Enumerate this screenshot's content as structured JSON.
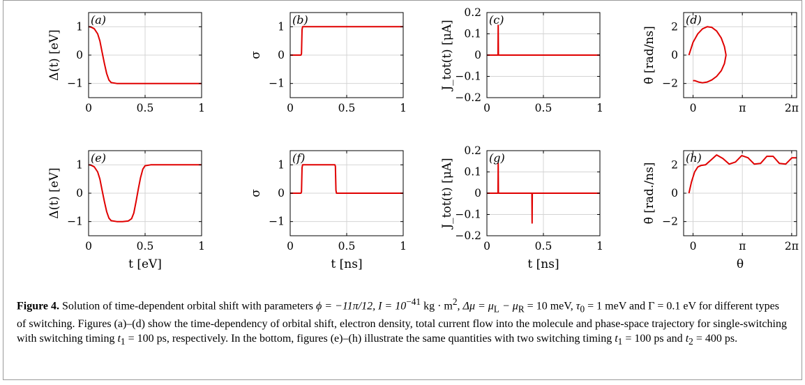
{
  "figure": {
    "label": "Figure 4.",
    "caption_parts": {
      "p1": "Solution of time-dependent orbital shift with parameters ",
      "phi": "ϕ = −11π/12, I = 10",
      "phi_exp": "−41",
      "I_units": " kg · m",
      "I_sq": "2",
      "sep1": ", ",
      "dmu": "Δμ = μ",
      "L": "L",
      "minus": " − μ",
      "R": "R",
      "dmu_val": " = 10 meV,",
      "tau": "τ",
      "tau_sub": "0",
      "tau_val": " = 1 meV and Γ = 0.1 eV",
      "p2": " for different types of switching. Figures (a)–(d) show the time-dependency of orbital shift, electron density, total current flow into the molecule and phase-space trajectory for single-switching with switching timing ",
      "t1": "t",
      "t1_sub": "1",
      "t1_val": " = 100 ps",
      "p3": ", respectively. In the bottom, figures (e)–(h) illustrate the same quantities with two switching timing ",
      "t1b": "t",
      "t1b_sub": "1",
      "t1b_val": " = 100 ps",
      "and": " and ",
      "t2": "t",
      "t2_sub": "2",
      "t2_val": " = 400 ps",
      "end": "."
    }
  },
  "colors": {
    "curve": "#e00000",
    "grid": "#d4d4d4",
    "axis": "#000000"
  },
  "chart_data": [
    {
      "panel": "(a)",
      "type": "line",
      "ylabel": "Δ(t)   [eV]",
      "xlabel": "",
      "xlim": [
        0,
        1
      ],
      "ylim": [
        -1.5,
        1.5
      ],
      "xticks": [
        "0",
        "0.5",
        "1"
      ],
      "yticks": [
        "1",
        "0",
        "−1"
      ],
      "grid": true,
      "series": [
        {
          "x": [
            0,
            0.02,
            0.05,
            0.08,
            0.1,
            0.12,
            0.14,
            0.16,
            0.18,
            0.2,
            0.25,
            0.3,
            0.5,
            0.75,
            1.0
          ],
          "y": [
            1.0,
            0.99,
            0.93,
            0.75,
            0.5,
            0.1,
            -0.3,
            -0.65,
            -0.88,
            -0.97,
            -1.0,
            -1.0,
            -1.0,
            -1.0,
            -1.0
          ]
        }
      ]
    },
    {
      "panel": "(b)",
      "type": "line",
      "ylabel": "σ",
      "xlabel": "",
      "xlim": [
        0,
        1
      ],
      "ylim": [
        -1.5,
        1.5
      ],
      "xticks": [
        "0",
        "0.5",
        "1"
      ],
      "yticks": [
        "1",
        "0",
        "−1"
      ],
      "grid": true,
      "series": [
        {
          "x": [
            0,
            0.095,
            0.1,
            0.105,
            0.11,
            0.2,
            0.5,
            1.0
          ],
          "y": [
            0,
            0.0,
            0.05,
            0.9,
            1.0,
            1.0,
            1.0,
            1.0
          ]
        }
      ]
    },
    {
      "panel": "(c)",
      "type": "line",
      "ylabel": "J_tot(t)   [μA]",
      "xlabel": "",
      "xlim": [
        0,
        1
      ],
      "ylim": [
        -0.2,
        0.2
      ],
      "xticks": [
        "0",
        "0.5",
        "1"
      ],
      "yticks": [
        "0.2",
        "0.1",
        "0",
        "−0.1",
        "−0.2"
      ],
      "grid": true,
      "series": [
        {
          "x": [
            0,
            0.098,
            0.1,
            0.1,
            0.102,
            1.0
          ],
          "y": [
            0,
            0,
            0.14,
            0.14,
            0,
            0
          ]
        }
      ]
    },
    {
      "panel": "(d)",
      "type": "line",
      "ylabel": "θ̇   [rad/ns]",
      "xlabel": "",
      "xlim": [
        -0.6,
        6.6
      ],
      "ylim": [
        -3,
        3
      ],
      "xticks": [
        "0",
        "π",
        "2π"
      ],
      "yticks": [
        "2",
        "0",
        "−2"
      ],
      "grid": true,
      "series": [
        {
          "x": [
            -0.26,
            0.0,
            0.3,
            0.6,
            0.9,
            1.2,
            1.5,
            1.8,
            2.0,
            2.1,
            2.0,
            1.8,
            1.5,
            1.2,
            0.9,
            0.6,
            0.35,
            0.1,
            0.0
          ],
          "y": [
            0.0,
            0.9,
            1.5,
            1.85,
            2.0,
            1.95,
            1.7,
            1.2,
            0.6,
            0.0,
            -0.6,
            -1.1,
            -1.5,
            -1.75,
            -1.9,
            -1.95,
            -1.9,
            -1.8,
            -1.8
          ]
        }
      ]
    },
    {
      "panel": "(e)",
      "type": "line",
      "ylabel": "Δ(t)   [eV]",
      "xlabel": "t   [eV]",
      "xlim": [
        0,
        1
      ],
      "ylim": [
        -1.5,
        1.5
      ],
      "xticks": [
        "0",
        "0.5",
        "1"
      ],
      "yticks": [
        "1",
        "0",
        "−1"
      ],
      "grid": true,
      "series": [
        {
          "x": [
            0,
            0.02,
            0.05,
            0.08,
            0.1,
            0.12,
            0.14,
            0.16,
            0.18,
            0.2,
            0.25,
            0.3,
            0.35,
            0.38,
            0.4,
            0.42,
            0.44,
            0.46,
            0.48,
            0.5,
            0.55,
            0.75,
            1.0
          ],
          "y": [
            1.0,
            0.99,
            0.93,
            0.75,
            0.5,
            0.1,
            -0.3,
            -0.65,
            -0.88,
            -0.97,
            -1.0,
            -1.0,
            -0.98,
            -0.9,
            -0.7,
            -0.3,
            0.15,
            0.55,
            0.85,
            0.97,
            1.0,
            1.0,
            1.0
          ]
        }
      ]
    },
    {
      "panel": "(f)",
      "type": "line",
      "ylabel": "σ",
      "xlabel": "t   [ns]",
      "xlim": [
        0,
        1
      ],
      "ylim": [
        -1.5,
        1.5
      ],
      "xticks": [
        "0",
        "0.5",
        "1"
      ],
      "yticks": [
        "1",
        "0",
        "−1"
      ],
      "grid": true,
      "series": [
        {
          "x": [
            0,
            0.095,
            0.1,
            0.105,
            0.11,
            0.2,
            0.395,
            0.4,
            0.405,
            0.41,
            0.5,
            1.0
          ],
          "y": [
            0,
            0.0,
            0.05,
            0.9,
            1.0,
            1.0,
            1.0,
            0.95,
            0.1,
            0.0,
            0.0,
            0.0
          ]
        }
      ]
    },
    {
      "panel": "(g)",
      "type": "line",
      "ylabel": "J_tot(t)   [μA]",
      "xlabel": "t   [ns]",
      "xlim": [
        0,
        1
      ],
      "ylim": [
        -0.2,
        0.2
      ],
      "xticks": [
        "0",
        "0.5",
        "1"
      ],
      "yticks": [
        "0.2",
        "0.1",
        "0",
        "−0.1",
        "−0.2"
      ],
      "grid": true,
      "series": [
        {
          "x": [
            0,
            0.098,
            0.1,
            0.1,
            0.102,
            0.398,
            0.4,
            0.4,
            0.402,
            1.0
          ],
          "y": [
            0,
            0,
            0.14,
            0.14,
            0,
            0,
            -0.14,
            -0.14,
            0,
            0
          ]
        }
      ]
    },
    {
      "panel": "(h)",
      "type": "line",
      "ylabel": "θ̇   [rad./ns]",
      "xlabel": "θ",
      "xlim": [
        -0.6,
        6.6
      ],
      "ylim": [
        -3,
        3
      ],
      "xticks": [
        "0",
        "π",
        "2π"
      ],
      "yticks": [
        "2",
        "0",
        "−2"
      ],
      "grid": true,
      "series": [
        {
          "x": [
            -0.26,
            -0.1,
            0.1,
            0.3,
            0.5,
            0.8,
            1.1,
            1.5,
            1.9,
            2.3,
            2.7,
            3.1,
            3.5,
            3.9,
            4.3,
            4.7,
            5.1,
            5.5,
            5.9,
            6.3,
            6.6
          ],
          "y": [
            0.0,
            0.8,
            1.5,
            1.85,
            1.95,
            2.0,
            2.3,
            2.7,
            2.45,
            2.05,
            2.2,
            2.65,
            2.5,
            2.05,
            2.1,
            2.6,
            2.6,
            2.1,
            2.05,
            2.5,
            2.5
          ]
        }
      ]
    }
  ]
}
